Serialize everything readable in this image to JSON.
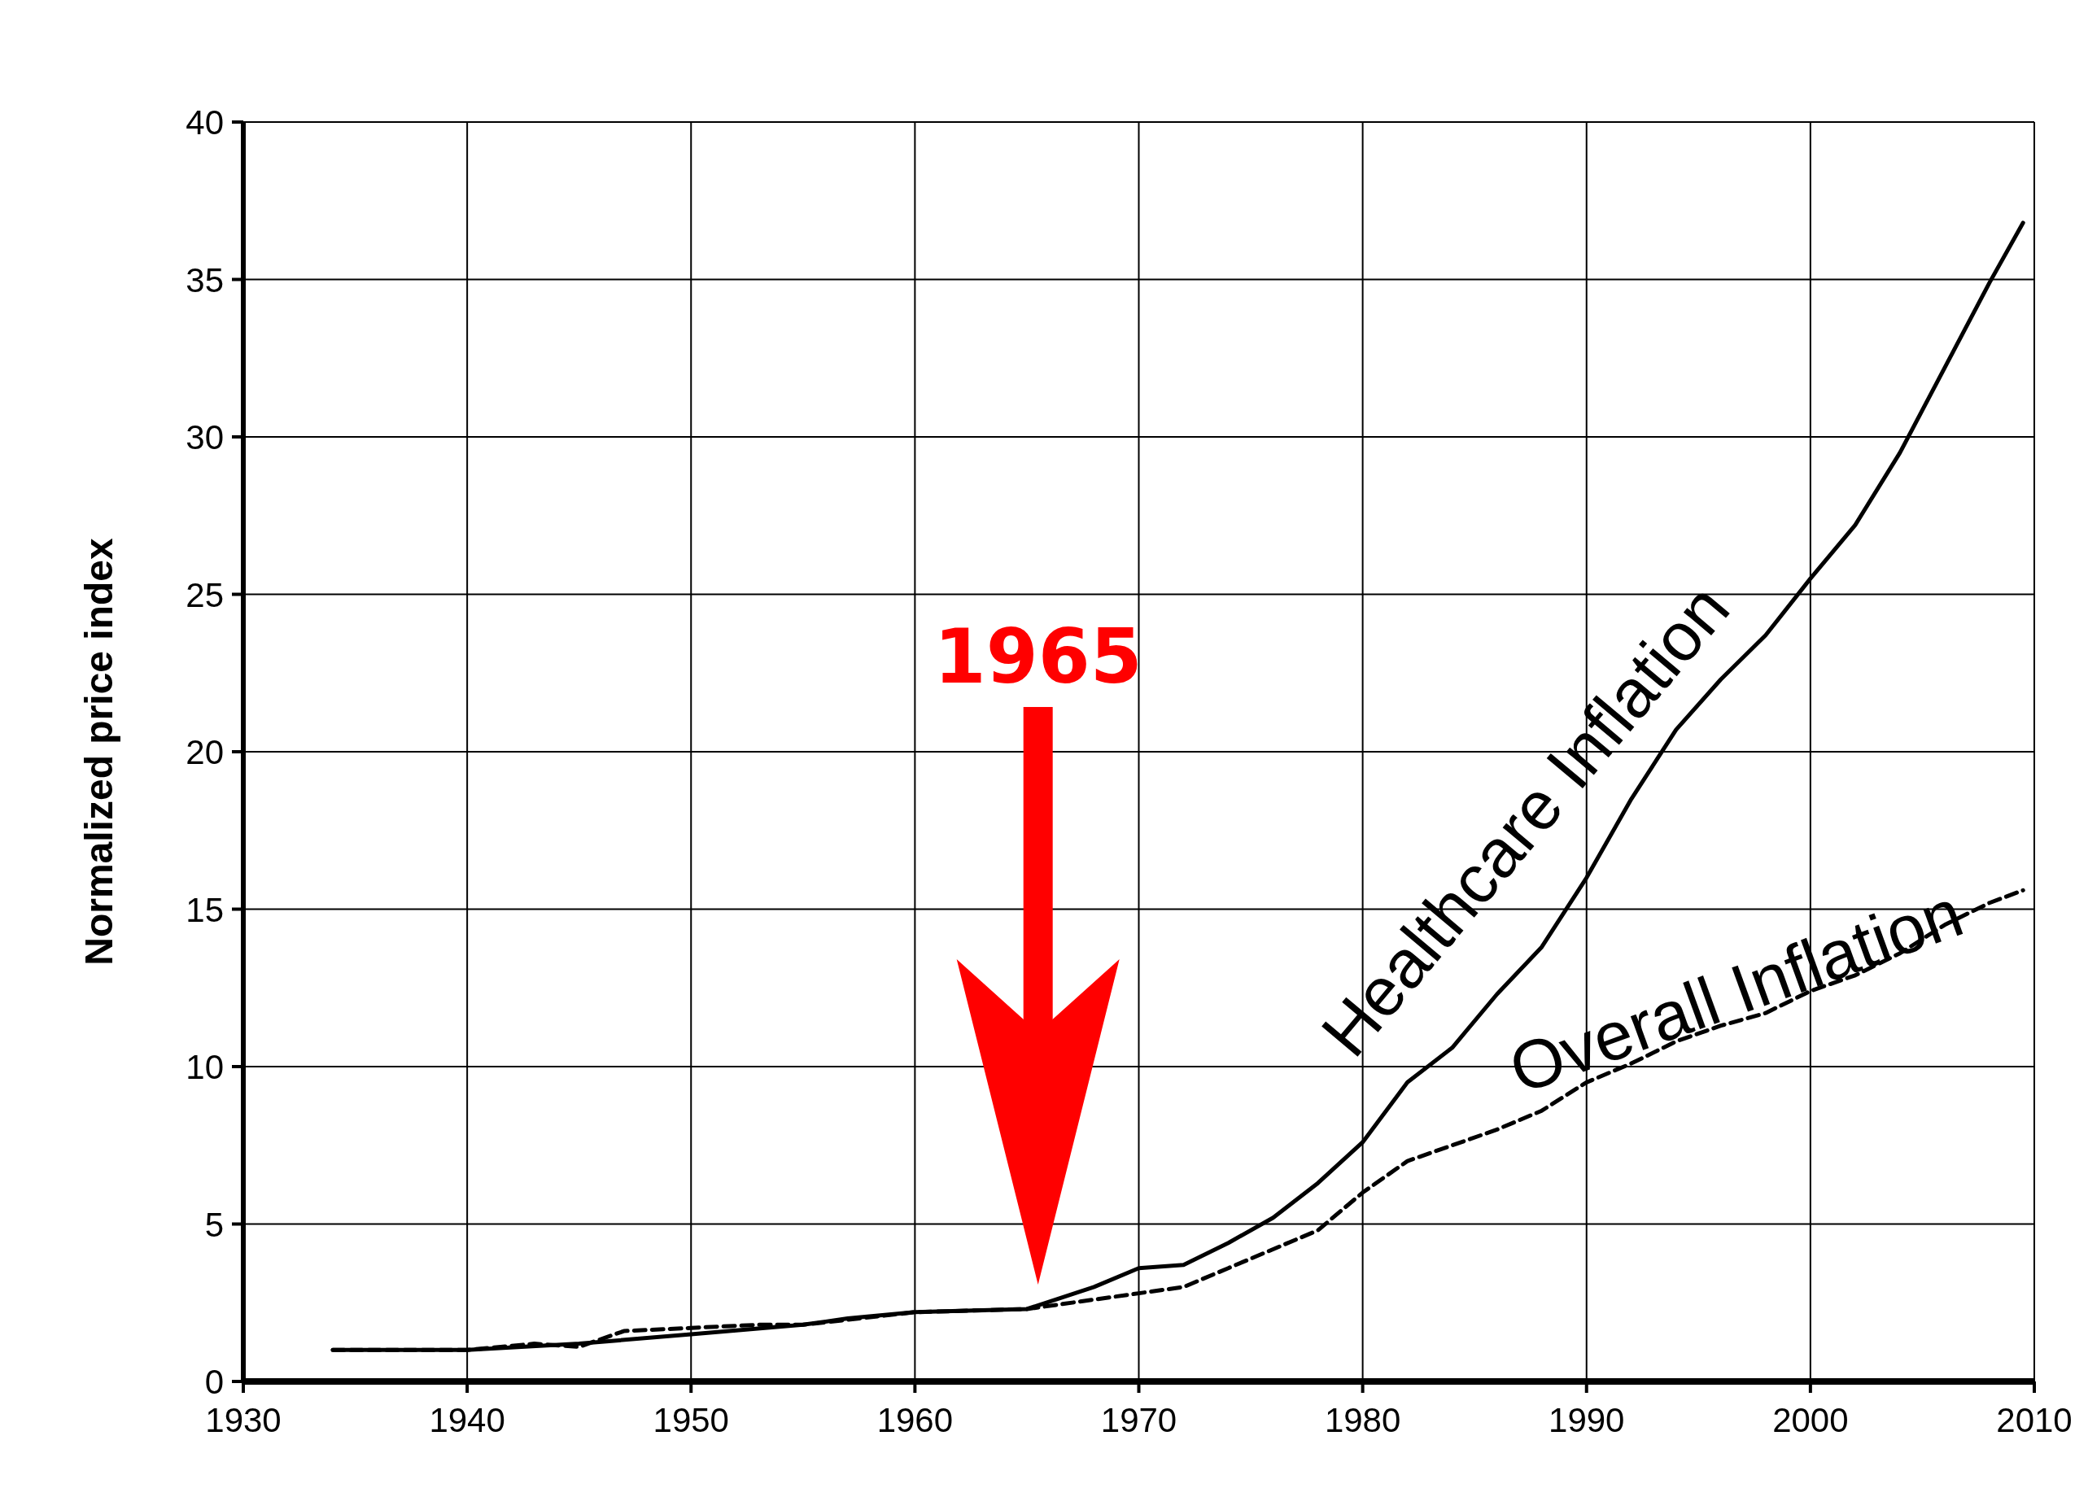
{
  "chart_data": {
    "type": "line",
    "ylabel": "Normalized price index",
    "xlim": [
      1930,
      2010
    ],
    "xticks": [
      1930,
      1940,
      1950,
      1960,
      1970,
      1980,
      1990,
      2000,
      2010
    ],
    "ylim": [
      0,
      40
    ],
    "yticks": [
      0,
      5,
      10,
      15,
      20,
      25,
      30,
      35,
      40
    ],
    "grid": true,
    "marker": "none",
    "annotations": [
      "1965"
    ],
    "series": [
      {
        "name": "Healthcare Inflation",
        "color": "#000000",
        "line_style": "solid",
        "x": [
          1934,
          1940,
          1945,
          1950,
          1955,
          1957,
          1960,
          1965,
          1968,
          1970,
          1972,
          1974,
          1976,
          1978,
          1980,
          1982,
          1984,
          1986,
          1988,
          1990,
          1992,
          1994,
          1996,
          1998,
          2000,
          2002,
          2004,
          2006,
          2008,
          2009.5
        ],
        "values": [
          1.0,
          1.0,
          1.2,
          1.5,
          1.8,
          2.0,
          2.2,
          2.3,
          3.0,
          3.6,
          3.7,
          4.4,
          5.2,
          6.3,
          7.6,
          9.5,
          10.6,
          12.3,
          13.8,
          16.0,
          18.5,
          20.7,
          22.3,
          23.7,
          25.5,
          27.2,
          29.5,
          32.2,
          34.9,
          36.8
        ]
      },
      {
        "name": "Overall Inflation",
        "color": "#000000",
        "line_style": "dashed",
        "x": [
          1934,
          1940,
          1943,
          1945,
          1947,
          1950,
          1953,
          1955,
          1960,
          1965,
          1968,
          1970,
          1972,
          1974,
          1976,
          1978,
          1980,
          1982,
          1984,
          1986,
          1988,
          1990,
          1992,
          1994,
          1996,
          1998,
          2000,
          2002,
          2004,
          2006,
          2008,
          2009.5
        ],
        "values": [
          1.0,
          1.0,
          1.2,
          1.1,
          1.6,
          1.7,
          1.8,
          1.8,
          2.2,
          2.3,
          2.6,
          2.8,
          3.0,
          3.6,
          4.2,
          4.8,
          6.0,
          7.0,
          7.5,
          8.0,
          8.6,
          9.5,
          10.1,
          10.8,
          11.3,
          11.7,
          12.4,
          12.9,
          13.6,
          14.5,
          15.2,
          15.6
        ]
      }
    ]
  }
}
